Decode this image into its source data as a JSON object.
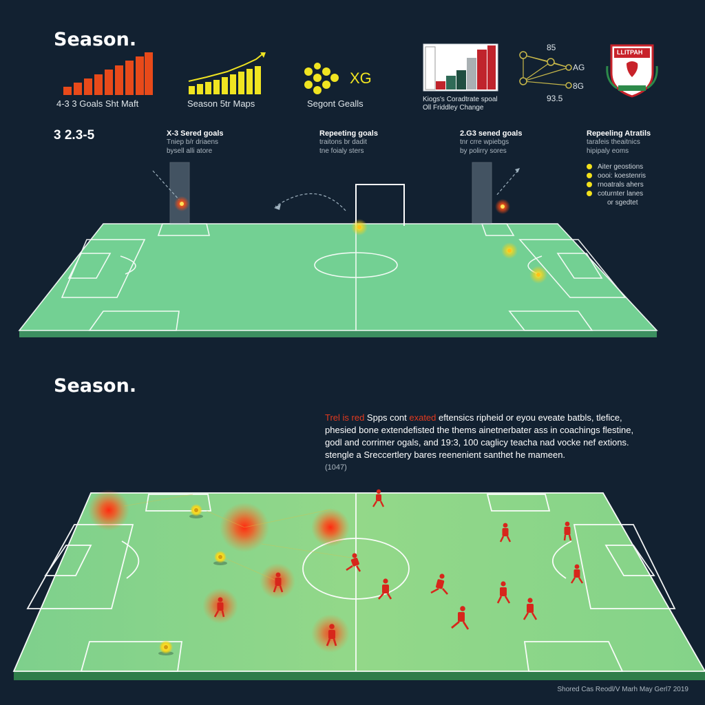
{
  "top": {
    "title": "Season.",
    "score": "3 2.3-5",
    "bar_chart": {
      "caption": "4-3 3 Goals Sht Maft",
      "color": "#e84a1a"
    },
    "line_chart": {
      "caption": "Season 5tr Maps",
      "color": "#f0e421"
    },
    "xg_block": {
      "label": "XG",
      "caption": "Segont Gealls",
      "color": "#f0e421"
    },
    "column_chart": {
      "caption_1": "Kiogs's Coradtrate spoal",
      "caption_2": "Oll Friddley Change"
    },
    "network": {
      "label_top": "85",
      "label_mid": "AG",
      "label_right": "8G",
      "label_bottom": "93.5"
    },
    "crest": {
      "text": "LLITPAH",
      "color": "#c8222a"
    },
    "annotations": [
      {
        "head": "X-3 Sered goals",
        "sub": "Tniep b/r driaens\nbysell alli atore"
      },
      {
        "head": "Repeeting goals",
        "sub": "traitons br dadit\ntne foialy sters"
      },
      {
        "head": "2.G3 sened goals",
        "sub": "tnr crre wpiebgs\nby polirry sores"
      },
      {
        "head": "Repeeling Atratils",
        "sub": "tarafeis theaitnics\nhipipaly eoms"
      }
    ],
    "legend": [
      "Aiter geostions",
      "oooi: koestenris",
      "rnoatrals ahers",
      "coturnter lanes",
      "or sgedtet"
    ]
  },
  "bottom": {
    "title": "Season.",
    "paragraph": {
      "red_1": "Trel is red",
      "text_1": " Spps cont ",
      "red_2": "exated",
      "text_2": " eftensics ripheid or eyou eveate batbls, tlefice,",
      "line_2": "phesied bone extendefisted the thems ainetnerbater ass in coachings flestine,",
      "line_3": "godl and corrimer ogals, and 19:3, 100 caglicy teacha nad vocke nef extions.",
      "line_4": "stengle a Sreccertlery bares reenenient santhet he mameen.",
      "line_5": "(1047)"
    }
  },
  "footer": "Shored Cas Reodl/V Marh May Gerl7 2019",
  "colors": {
    "background": "#122131",
    "pitch": "#73d093",
    "pitch_light": "#8ed88a",
    "player": "#d7261b",
    "heat": "#ff3b14",
    "ball": "#f2d51c"
  }
}
